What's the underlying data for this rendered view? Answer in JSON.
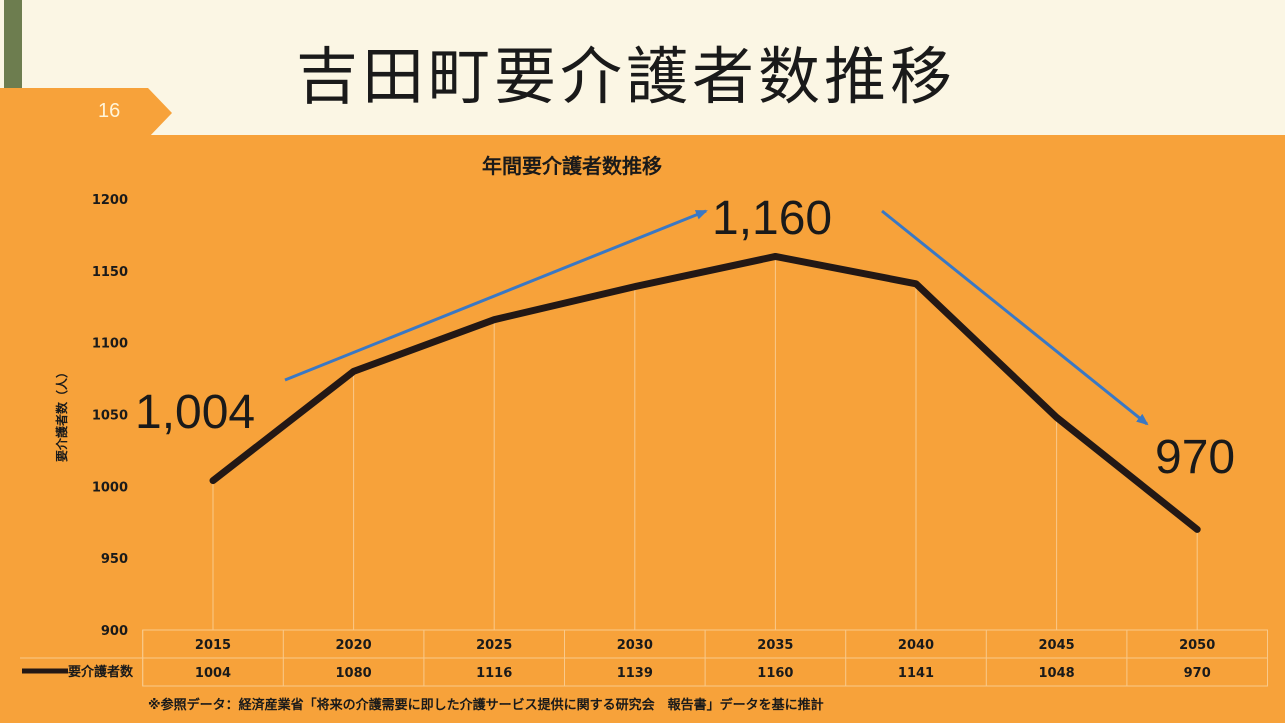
{
  "slide": {
    "page_number": "16",
    "title": "吉田町要介護者数推移",
    "footnote": "※参照データ：経済産業省「将来の介護需要に即した介護サービス提供に関する研究会　報告書」データを基に推計"
  },
  "chart_data": {
    "type": "line",
    "title": "年間要介護者数推移",
    "ylabel": "要介護者数（人）",
    "ylim": [
      900,
      1200
    ],
    "yticks": [
      900,
      950,
      1000,
      1050,
      1100,
      1150,
      1200
    ],
    "categories": [
      "2015",
      "2020",
      "2025",
      "2030",
      "2035",
      "2040",
      "2045",
      "2050"
    ],
    "series": [
      {
        "name": "要介護者数",
        "values": [
          1004,
          1080,
          1116,
          1139,
          1160,
          1141,
          1048,
          970
        ]
      }
    ],
    "table_values": [
      "1004",
      "1080",
      "1116",
      "1139",
      "1160",
      "1141",
      "1048",
      "970"
    ],
    "annotations": [
      {
        "text": "1,004"
      },
      {
        "text": "1,160"
      },
      {
        "text": "970"
      }
    ],
    "colors": {
      "line": "#231815",
      "arrow": "#3a78c4",
      "background": "#f7a23a",
      "grid": "#f9c98a"
    }
  }
}
